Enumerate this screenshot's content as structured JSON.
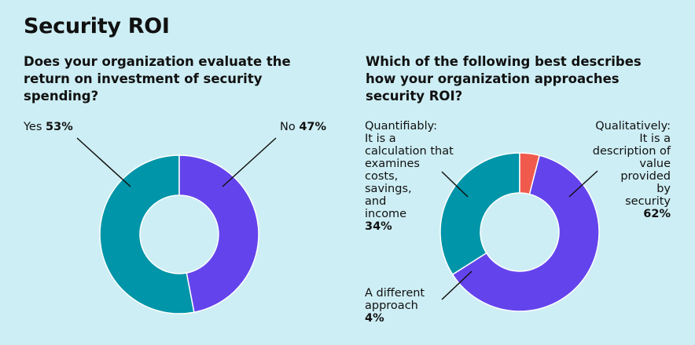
{
  "title": "Security ROI",
  "colors": {
    "background": "#cdeef4",
    "teal": "#0095a8",
    "purple": "#6344ec",
    "coral": "#f05a4c"
  },
  "chart_data": [
    {
      "type": "pie",
      "title": "Does your organization evaluate the return on investment of security spending?",
      "categories": [
        "Yes",
        "No"
      ],
      "values": [
        53,
        47
      ],
      "value_labels": [
        "53%",
        "47%"
      ],
      "colors": [
        "#0095a8",
        "#6344ec"
      ],
      "donut": true
    },
    {
      "type": "pie",
      "title": "Which of the following best describes how your organization approaches security ROI?",
      "categories": [
        "Quantifiably: It is a calculation that examines costs, savings, and income",
        "Qualitatively: It is a description of value provided by security",
        "A different approach"
      ],
      "values": [
        34,
        62,
        4
      ],
      "value_labels": [
        "34%",
        "62%",
        "4%"
      ],
      "colors": [
        "#0095a8",
        "#6344ec",
        "#f05a4c"
      ],
      "donut": true
    }
  ],
  "labels": {
    "yes": {
      "name": "Yes",
      "value": "53%"
    },
    "no": {
      "name": "No",
      "value": "47%"
    },
    "quant": {
      "lines": [
        "Quantifiably:",
        "It is a",
        "calculation that",
        "examines",
        "costs,",
        "savings,",
        "and",
        "income"
      ],
      "value": "34%"
    },
    "qual": {
      "lines": [
        "Qualitatively:",
        "It is a",
        "description of",
        "value",
        "provided",
        "by",
        "security"
      ],
      "value": "62%"
    },
    "diff": {
      "lines": [
        "A different",
        "approach"
      ],
      "value": "4%"
    }
  }
}
